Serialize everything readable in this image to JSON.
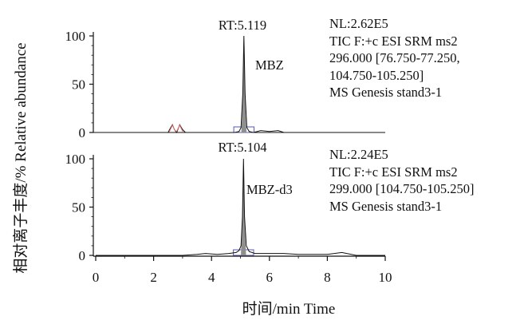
{
  "chart_data": {
    "type": "line",
    "xlabel": "时间/min Time",
    "ylabel": "相对离子丰度/% Relative abundance",
    "xlim": [
      0,
      10
    ],
    "x_ticks": [
      "0",
      "2",
      "4",
      "6",
      "8",
      "10"
    ],
    "ylim": [
      0,
      100
    ],
    "panels": [
      {
        "peak_label": "RT:5.119",
        "compound_label": "MBZ",
        "peak_rt": 5.119,
        "peak_height": 100,
        "y_ticks": [
          "100",
          "50",
          "0"
        ],
        "info_lines": [
          "NL:2.62E5",
          "TIC F:+c ESI SRM ms2",
          "296.000 [76.750-77.250,",
          "104.750-105.250]",
          "MS Genesis stand3-1"
        ],
        "series": [
          {
            "x": [
              0,
              2.5,
              2.55,
              2.65,
              2.72,
              2.8,
              2.9,
              3.0,
              3.1,
              4.8,
              4.95,
              5.02,
              5.08,
              5.119,
              5.16,
              5.22,
              5.3,
              5.45,
              5.7,
              6.0,
              6.3,
              6.5,
              7.0,
              10
            ],
            "y": [
              0,
              0,
              3,
              8,
              3,
              0,
              8,
              3,
              0,
              0,
              1,
              5,
              40,
              100,
              40,
              5,
              1,
              0,
              2,
              1,
              2,
              0,
              0,
              0
            ]
          }
        ]
      },
      {
        "peak_label": "RT:5.104",
        "compound_label": "MBZ-d3",
        "peak_rt": 5.104,
        "peak_height": 100,
        "y_ticks": [
          "100",
          "50",
          "0"
        ],
        "info_lines": [
          "NL:2.24E5",
          "TIC F:+c ESI SRM ms2",
          "299.000 [104.750-105.250]",
          "MS Genesis stand3-1"
        ],
        "series": [
          {
            "x": [
              0,
              1.0,
              2.0,
              3.0,
              3.5,
              3.8,
              4.2,
              4.6,
              4.85,
              4.95,
              5.02,
              5.07,
              5.104,
              5.14,
              5.2,
              5.3,
              5.5,
              6.0,
              6.5,
              7.0,
              7.5,
              8.0,
              8.5,
              9.0,
              10
            ],
            "y": [
              0,
              0,
              0,
              0,
              1,
              2,
              1,
              2,
              3,
              5,
              10,
              40,
              100,
              40,
              10,
              4,
              2,
              2,
              2,
              1,
              1,
              1,
              3,
              0,
              0
            ]
          }
        ]
      }
    ]
  },
  "colors": {
    "trace": "#111111",
    "peak_fill": "#8f8f8f",
    "baseline_box": "#5a5ab0",
    "marker": "#e07070"
  }
}
